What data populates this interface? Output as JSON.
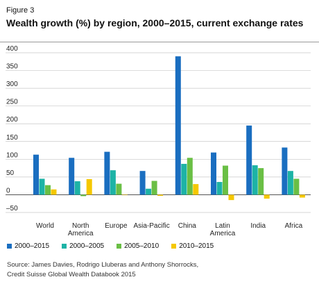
{
  "figure_label": "Figure 3",
  "title": "Wealth growth (%) by region, 2000–2015, current exchange rates",
  "source_lines": [
    "Source: James Davies, Rodrigo Lluberas and Anthony Shorrocks,",
    "Credit Suisse Global Wealth Databook 2015"
  ],
  "chart_data": {
    "type": "bar",
    "categories": [
      "World",
      "North America",
      "Europe",
      "Asia-Pacific",
      "China",
      "Latin America",
      "India",
      "Africa"
    ],
    "category_lines": [
      [
        "World"
      ],
      [
        "North",
        "America"
      ],
      [
        "Europe"
      ],
      [
        "Asia-Pacific"
      ],
      [
        "China"
      ],
      [
        "Latin",
        "America"
      ],
      [
        "India"
      ],
      [
        "Africa"
      ]
    ],
    "series": [
      {
        "name": "2000–2015",
        "color": "#1a6ec0",
        "values": [
          113,
          104,
          121,
          67,
          390,
          119,
          195,
          133
        ]
      },
      {
        "name": "2000–2005",
        "color": "#1db3a6",
        "values": [
          45,
          38,
          69,
          17,
          87,
          36,
          83,
          67
        ]
      },
      {
        "name": "2005–2010",
        "color": "#6abf45",
        "values": [
          27,
          -4,
          31,
          39,
          104,
          82,
          75,
          45
        ]
      },
      {
        "name": "2010–2015",
        "color": "#f5c800",
        "values": [
          15,
          44,
          -1,
          -3,
          30,
          -15,
          -11,
          -8
        ]
      }
    ],
    "y_ticks": [
      400,
      350,
      300,
      250,
      200,
      150,
      100,
      50,
      0,
      -50
    ],
    "y_tick_labels": [
      "400",
      "350",
      "300",
      "250",
      "200",
      "150",
      "100",
      "50",
      "0",
      "–50"
    ],
    "ylim": [
      -50,
      400
    ],
    "grid": true,
    "legend_position": "bottom-left"
  }
}
